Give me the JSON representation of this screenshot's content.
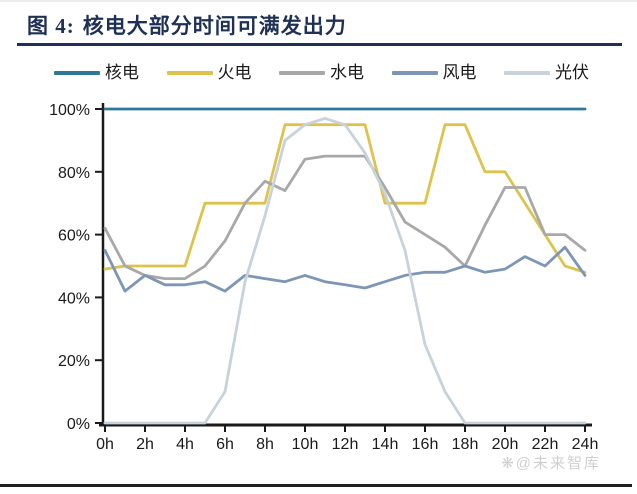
{
  "figure": {
    "title_prefix": "图 4:",
    "title": "核电大部分时间可满发出力"
  },
  "watermark": {
    "logo_glyph": "❋",
    "text": "@未来智库"
  },
  "colors": {
    "title_navy": "#1e3055",
    "axis": "#1a1a1a",
    "nuclear": "#2f7899",
    "thermal": "#ddc34c",
    "hydro": "#a8a8a8",
    "wind": "#7d96b6",
    "solar": "#c7d2db",
    "watermark_gray": "#cfcfcf"
  },
  "chart_data": {
    "type": "line",
    "title": "图 4: 核电大部分时间可满发出力",
    "x_unit": "h",
    "x": [
      0,
      1,
      2,
      3,
      4,
      5,
      6,
      7,
      8,
      9,
      10,
      11,
      12,
      13,
      14,
      15,
      16,
      17,
      18,
      19,
      20,
      21,
      22,
      23,
      24
    ],
    "x_tick_labels": [
      "0h",
      "2h",
      "4h",
      "6h",
      "8h",
      "10h",
      "12h",
      "14h",
      "16h",
      "18h",
      "20h",
      "22h",
      "24h"
    ],
    "y_tick_labels": [
      "0%",
      "20%",
      "40%",
      "60%",
      "80%",
      "100%"
    ],
    "ylim": [
      0,
      100
    ],
    "grid": false,
    "legend_position": "top",
    "series": [
      {
        "name": "核电",
        "color": "#2f7899",
        "values": [
          100,
          100,
          100,
          100,
          100,
          100,
          100,
          100,
          100,
          100,
          100,
          100,
          100,
          100,
          100,
          100,
          100,
          100,
          100,
          100,
          100,
          100,
          100,
          100,
          100
        ]
      },
      {
        "name": "火电",
        "color": "#ddc34c",
        "values": [
          49,
          50,
          50,
          50,
          50,
          70,
          70,
          70,
          70,
          95,
          95,
          95,
          95,
          95,
          70,
          70,
          70,
          95,
          95,
          80,
          80,
          70,
          60,
          50,
          48
        ]
      },
      {
        "name": "水电",
        "color": "#a8a8a8",
        "values": [
          62,
          50,
          47,
          46,
          46,
          50,
          58,
          70,
          77,
          74,
          84,
          85,
          85,
          85,
          75,
          64,
          60,
          56,
          50,
          63,
          75,
          75,
          60,
          60,
          55
        ]
      },
      {
        "name": "风电",
        "color": "#7d96b6",
        "values": [
          55,
          42,
          47,
          44,
          44,
          45,
          42,
          47,
          46,
          45,
          47,
          45,
          44,
          43,
          45,
          47,
          48,
          48,
          50,
          48,
          49,
          53,
          50,
          56,
          47
        ]
      },
      {
        "name": "光伏",
        "color": "#c7d2db",
        "values": [
          0,
          0,
          0,
          0,
          0,
          0,
          10,
          45,
          66,
          90,
          95,
          97,
          95,
          86,
          73,
          55,
          25,
          10,
          0,
          0,
          0,
          0,
          0,
          0,
          0
        ]
      }
    ]
  }
}
